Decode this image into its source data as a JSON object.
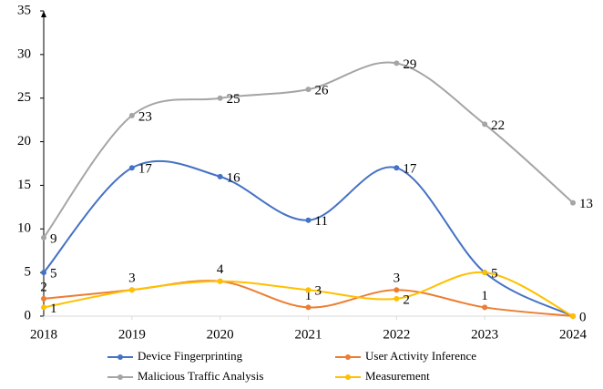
{
  "chart_data": {
    "type": "line",
    "x": [
      2018,
      2019,
      2020,
      2021,
      2022,
      2023,
      2024
    ],
    "series": [
      {
        "name": "Device Fingerprinting",
        "color": "#4472c4",
        "values": [
          5,
          17,
          16,
          11,
          17,
          5,
          0
        ]
      },
      {
        "name": "User Activity Inference",
        "color": "#ed7d31",
        "values": [
          2,
          3,
          4,
          1,
          3,
          1,
          0
        ]
      },
      {
        "name": "Malicious Traffic Analysis",
        "color": "#a5a5a5",
        "values": [
          9,
          23,
          25,
          26,
          29,
          22,
          13
        ]
      },
      {
        "name": "Measurement",
        "color": "#ffc000",
        "values": [
          1,
          3,
          4,
          3,
          2,
          5,
          0
        ]
      }
    ],
    "xlim": [
      2018,
      2024
    ],
    "xticks": [
      2018,
      2019,
      2020,
      2021,
      2022,
      2023,
      2024
    ],
    "ylim": [
      0,
      35
    ],
    "yticks": [
      0,
      5,
      10,
      15,
      20,
      25,
      30,
      35
    ],
    "smooth": true,
    "grid": false,
    "legend": "bottom"
  }
}
